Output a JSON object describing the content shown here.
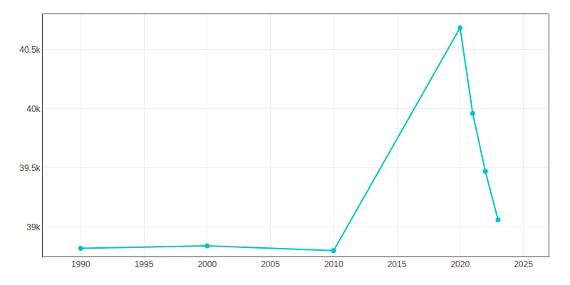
{
  "chart_data": {
    "type": "line",
    "x": [
      1990,
      2000,
      2010,
      2020,
      2021,
      2022,
      2023
    ],
    "values": [
      38820,
      38840,
      38800,
      40685,
      39960,
      39470,
      39060
    ],
    "color": "#00C5C5",
    "marker": "circle",
    "xlim": [
      1987,
      2027
    ],
    "xticks": [
      1990,
      1995,
      2000,
      2005,
      2010,
      2015,
      2020,
      2025
    ],
    "ylim": [
      38750,
      40800
    ],
    "yticks": [
      {
        "value": 39000,
        "label": "39k"
      },
      {
        "value": 39500,
        "label": "39.5k"
      },
      {
        "value": 40000,
        "label": "40k"
      },
      {
        "value": 40500,
        "label": "40.5k"
      }
    ],
    "grid": true
  }
}
